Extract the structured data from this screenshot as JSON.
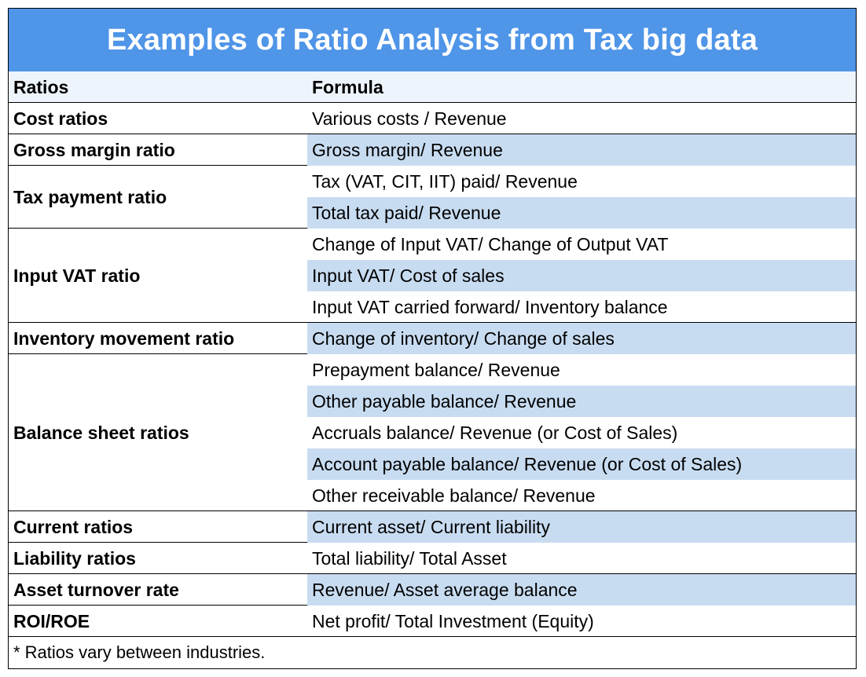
{
  "title": "Examples of Ratio Analysis from Tax big data",
  "header": {
    "ratios": "Ratios",
    "formula": "Formula"
  },
  "groups": [
    {
      "ratio": "Cost ratios",
      "formulas": [
        "Various costs / Revenue"
      ]
    },
    {
      "ratio": "Gross margin ratio",
      "formulas": [
        "Gross margin/ Revenue"
      ]
    },
    {
      "ratio": "Tax payment ratio",
      "formulas": [
        "Tax (VAT, CIT, IIT) paid/ Revenue",
        "Total tax paid/ Revenue"
      ]
    },
    {
      "ratio": "Input VAT ratio",
      "formulas": [
        "Change of Input VAT/ Change of Output VAT",
        "Input VAT/ Cost of sales",
        "Input VAT carried forward/ Inventory balance"
      ]
    },
    {
      "ratio": "Inventory movement ratio",
      "formulas": [
        "Change of inventory/ Change of sales"
      ]
    },
    {
      "ratio": "Balance sheet ratios",
      "formulas": [
        "Prepayment balance/ Revenue",
        "Other payable balance/ Revenue",
        "Accruals balance/ Revenue (or Cost of Sales)",
        "Account payable balance/ Revenue (or Cost of Sales)",
        "Other receivable balance/ Revenue"
      ]
    },
    {
      "ratio": "Current ratios",
      "formulas": [
        "Current asset/ Current liability"
      ]
    },
    {
      "ratio": "Liability ratios",
      "formulas": [
        "Total liability/ Total Asset"
      ]
    },
    {
      "ratio": "Asset turnover rate",
      "formulas": [
        "Revenue/ Asset average balance"
      ]
    },
    {
      "ratio": "ROI/ROE",
      "formulas": [
        "Net profit/ Total Investment (Equity)"
      ]
    }
  ],
  "footnote": "* Ratios vary between industries."
}
